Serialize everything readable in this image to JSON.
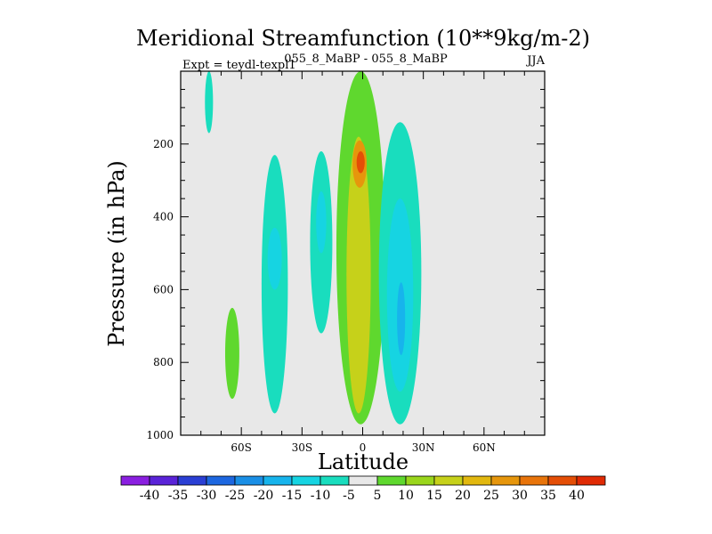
{
  "chart_data": {
    "type": "contour",
    "title": "Meridional Streamfunction (10**9kg/m-2)",
    "subtitle_left": "Expt = teydl-texpl1",
    "subtitle_center": "055_8_MaBP - 055_8_MaBP",
    "subtitle_right": "JJA",
    "xlabel": "Latitude",
    "ylabel": "Pressure (in hPa)",
    "x_ticks": [
      "60S",
      "30S",
      "0",
      "30N",
      "60N"
    ],
    "x_tick_values": [
      -60,
      -30,
      0,
      30,
      60
    ],
    "xlim": [
      -90,
      90
    ],
    "y_ticks": [
      "200",
      "400",
      "600",
      "800",
      "1000"
    ],
    "y_tick_values": [
      200,
      400,
      600,
      800,
      1000
    ],
    "ylim": [
      0,
      1000
    ],
    "colorbar_labels": [
      "-40",
      "-35",
      "-30",
      "-25",
      "-20",
      "-15",
      "-10",
      "-5",
      "5",
      "10",
      "15",
      "20",
      "25",
      "30",
      "35",
      "40"
    ],
    "colorbar_colors": [
      "#8a1fe0",
      "#5a23d8",
      "#2a3fd4",
      "#1d67e0",
      "#1a8fe6",
      "#17b4ec",
      "#16d4e2",
      "#19ddbe",
      "#e8e8e8",
      "#5fd82e",
      "#9ad61c",
      "#c6d11a",
      "#e2b80f",
      "#e6960c",
      "#e8740a",
      "#e44e06",
      "#e02a04"
    ],
    "features": [
      {
        "type": "negative",
        "level": -5,
        "lat": [
          -78,
          -74
        ],
        "p": [
          0,
          170
        ]
      },
      {
        "type": "positive",
        "level": 5,
        "lat": [
          -68,
          -61
        ],
        "p": [
          650,
          900
        ]
      },
      {
        "type": "negative",
        "level": -5,
        "lat": [
          -50,
          -37
        ],
        "p": [
          230,
          940
        ]
      },
      {
        "type": "negative",
        "level": -10,
        "lat": [
          -47,
          -40
        ],
        "p": [
          430,
          600
        ]
      },
      {
        "type": "negative",
        "level": -5,
        "lat": [
          -26,
          -15
        ],
        "p": [
          220,
          720
        ]
      },
      {
        "type": "negative",
        "level": -10,
        "lat": [
          -23,
          -18
        ],
        "p": [
          330,
          500
        ]
      },
      {
        "type": "positive",
        "level": 5,
        "lat": [
          -13,
          11
        ],
        "p": [
          0,
          970
        ]
      },
      {
        "type": "positive",
        "level": 15,
        "lat": [
          -8,
          4
        ],
        "p": [
          180,
          940
        ]
      },
      {
        "type": "positive",
        "level": 25,
        "lat": [
          -5,
          2
        ],
        "p": [
          190,
          320
        ]
      },
      {
        "type": "positive",
        "level": 35,
        "lat": [
          -3,
          1
        ],
        "p": [
          220,
          280
        ]
      },
      {
        "type": "negative",
        "level": -5,
        "lat": [
          8,
          29
        ],
        "p": [
          140,
          970
        ]
      },
      {
        "type": "negative",
        "level": -10,
        "lat": [
          12,
          25
        ],
        "p": [
          350,
          880
        ]
      },
      {
        "type": "negative",
        "level": -15,
        "lat": [
          17,
          21
        ],
        "p": [
          580,
          780
        ]
      }
    ]
  }
}
